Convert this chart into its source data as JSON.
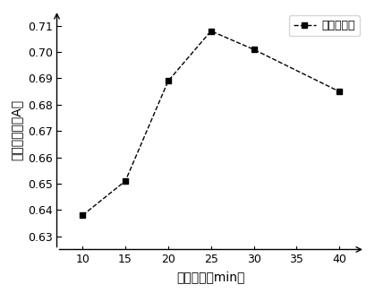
{
  "x": [
    10,
    15,
    20,
    25,
    30,
    40
  ],
  "y": [
    0.638,
    0.651,
    0.689,
    0.708,
    0.701,
    0.685
  ],
  "xlabel": "提取时间（min）",
  "ylabel": "非黄吸光度（A）",
  "legend_label": "非黄吸光度",
  "line_color": "#000000",
  "marker": "s",
  "marker_color": "#000000",
  "xticks": [
    10,
    15,
    20,
    25,
    30,
    35,
    40
  ],
  "yticks": [
    0.63,
    0.64,
    0.65,
    0.66,
    0.67,
    0.68,
    0.69,
    0.7,
    0.71
  ],
  "xlim": [
    7,
    43
  ],
  "ylim": [
    0.625,
    0.716
  ],
  "figsize": [
    4.19,
    3.27
  ],
  "dpi": 100
}
